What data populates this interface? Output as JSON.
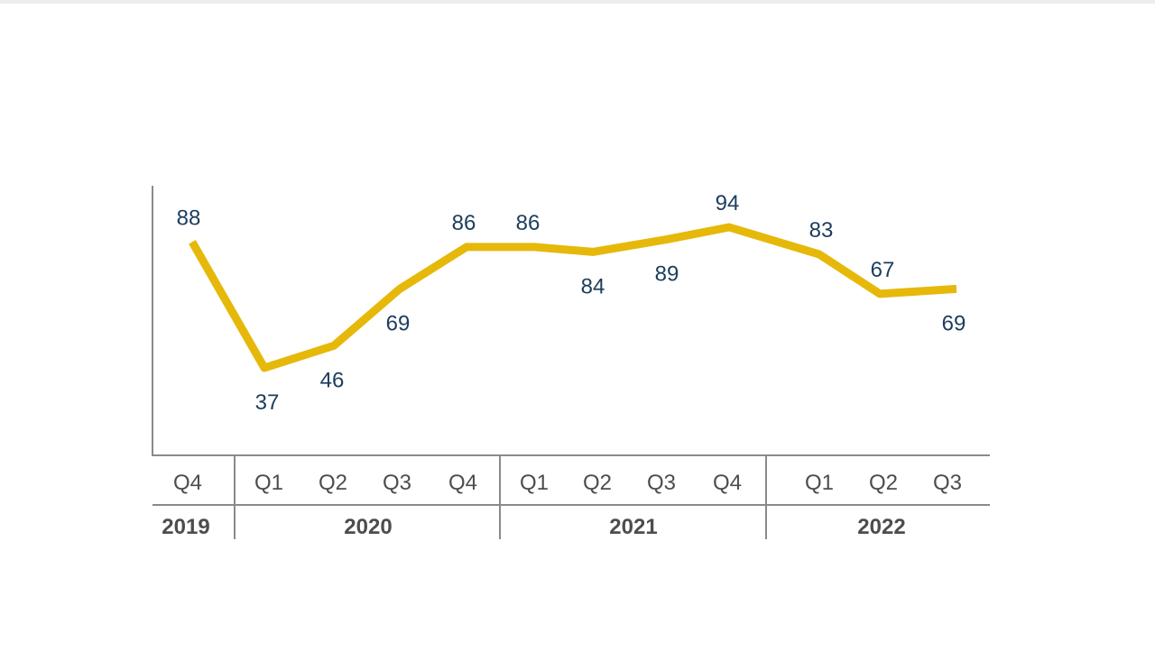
{
  "chart_data": {
    "type": "line",
    "x": [
      "Q4",
      "Q1",
      "Q2",
      "Q3",
      "Q4",
      "Q1",
      "Q2",
      "Q3",
      "Q4",
      "Q1",
      "Q2",
      "Q3"
    ],
    "years": [
      "2019",
      "2020",
      "2021",
      "2022"
    ],
    "year_spans": [
      {
        "year": "2019",
        "quarters": 1
      },
      {
        "year": "2020",
        "quarters": 4
      },
      {
        "year": "2021",
        "quarters": 4
      },
      {
        "year": "2022",
        "quarters": 3
      }
    ],
    "series": [
      {
        "values": [
          88,
          37,
          46,
          69,
          86,
          86,
          84,
          89,
          94,
          83,
          67,
          69
        ],
        "color": "#e6b80a"
      }
    ],
    "data_labels": [
      "88",
      "37",
      "46",
      "69",
      "86",
      "86",
      "84",
      "89",
      "94",
      "83",
      "67",
      "69"
    ],
    "ylim": [
      0,
      120
    ],
    "grid": false,
    "colors": {
      "line": "#e6b80a",
      "data_label": "#1d3c5c",
      "axis": "#8a8a8a",
      "tick_text": "#4d4d4d"
    }
  }
}
